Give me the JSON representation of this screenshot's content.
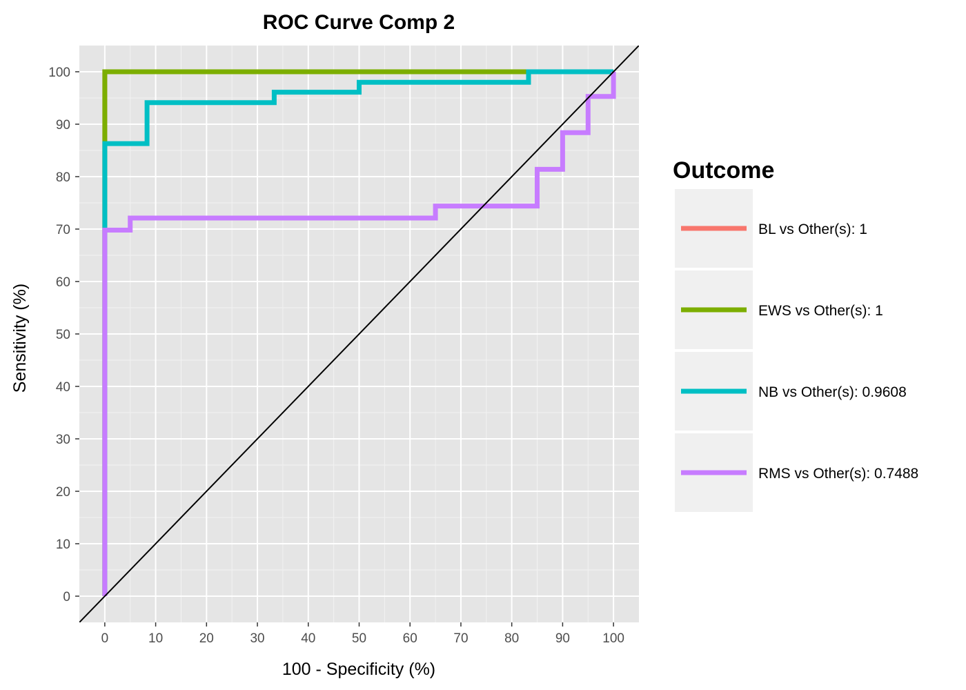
{
  "chart_data": {
    "type": "line",
    "title": "ROC Curve Comp 2",
    "xlabel": "100 - Specificity (%)",
    "ylabel": "Sensitivity (%)",
    "xlim": [
      -5,
      105
    ],
    "ylim": [
      -5,
      105
    ],
    "xticks": [
      "0",
      "10",
      "20",
      "30",
      "40",
      "50",
      "60",
      "70",
      "80",
      "90",
      "100"
    ],
    "yticks": [
      "0",
      "10",
      "20",
      "30",
      "40",
      "50",
      "60",
      "70",
      "80",
      "90",
      "100"
    ],
    "grid": true,
    "legend": {
      "title": "Outcome",
      "position": "right"
    },
    "reference_line": {
      "x": [
        -5,
        105
      ],
      "y": [
        -5,
        105
      ],
      "color": "#000000"
    },
    "series": [
      {
        "name": "BL vs Other(s): 1",
        "color": "#F8766D",
        "x": [
          0,
          0,
          100
        ],
        "y": [
          0,
          100,
          100
        ]
      },
      {
        "name": "EWS vs Other(s): 1",
        "color": "#7CAE00",
        "x": [
          0,
          0,
          83.3
        ],
        "y": [
          0,
          100,
          100
        ]
      },
      {
        "name": "NB vs Other(s): 0.9608",
        "color": "#00BFC4",
        "x": [
          0,
          0,
          8.3,
          8.3,
          33.3,
          33.3,
          50,
          50,
          83.3,
          83.3,
          100
        ],
        "y": [
          0,
          86.3,
          86.3,
          94.1,
          94.1,
          96.1,
          96.1,
          98,
          98,
          100,
          100
        ]
      },
      {
        "name": "RMS vs Other(s): 0.7488",
        "color": "#C77CFF",
        "x": [
          0,
          0,
          5,
          5,
          65,
          65,
          85,
          85,
          90,
          90,
          95,
          95,
          100,
          100
        ],
        "y": [
          0,
          69.8,
          69.8,
          72.1,
          72.1,
          74.4,
          74.4,
          81.4,
          81.4,
          88.4,
          88.4,
          95.3,
          95.3,
          100
        ]
      }
    ]
  }
}
